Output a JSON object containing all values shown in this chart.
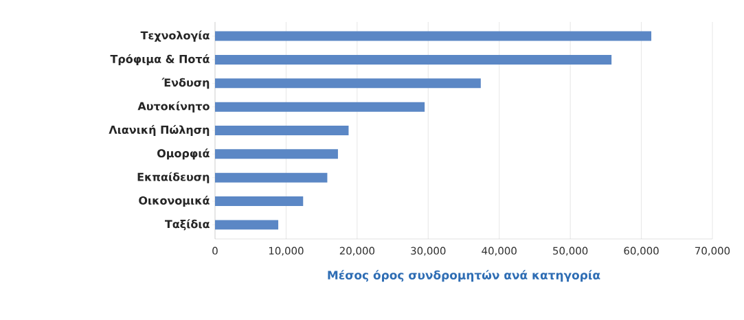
{
  "chart_data": {
    "type": "bar",
    "orientation": "horizontal",
    "categories": [
      "Τεχνολογία",
      "Τρόφιμα & Ποτά",
      "Ένδυση",
      "Αυτοκίνητο",
      "Λιανική Πώληση",
      "Ομορφιά",
      "Εκπαίδευση",
      "Οικονομικά",
      "Ταξίδια"
    ],
    "values": [
      61400,
      55800,
      37400,
      29500,
      18800,
      17300,
      15800,
      12400,
      8900
    ],
    "color": "#5b87c5",
    "xlabel": "Μέσος όρος συνδρομητών ανά κατηγορία",
    "xlim": [
      0,
      70000
    ],
    "xticks": [
      {
        "value": 0,
        "label": "0"
      },
      {
        "value": 10000,
        "label": "10,000"
      },
      {
        "value": 20000,
        "label": "20,000"
      },
      {
        "value": 30000,
        "label": "30,000"
      },
      {
        "value": 40000,
        "label": "40,000"
      },
      {
        "value": 50000,
        "label": "50,000"
      },
      {
        "value": 60000,
        "label": "60,000"
      },
      {
        "value": 70000,
        "label": "70,000"
      }
    ],
    "grid": "x"
  }
}
